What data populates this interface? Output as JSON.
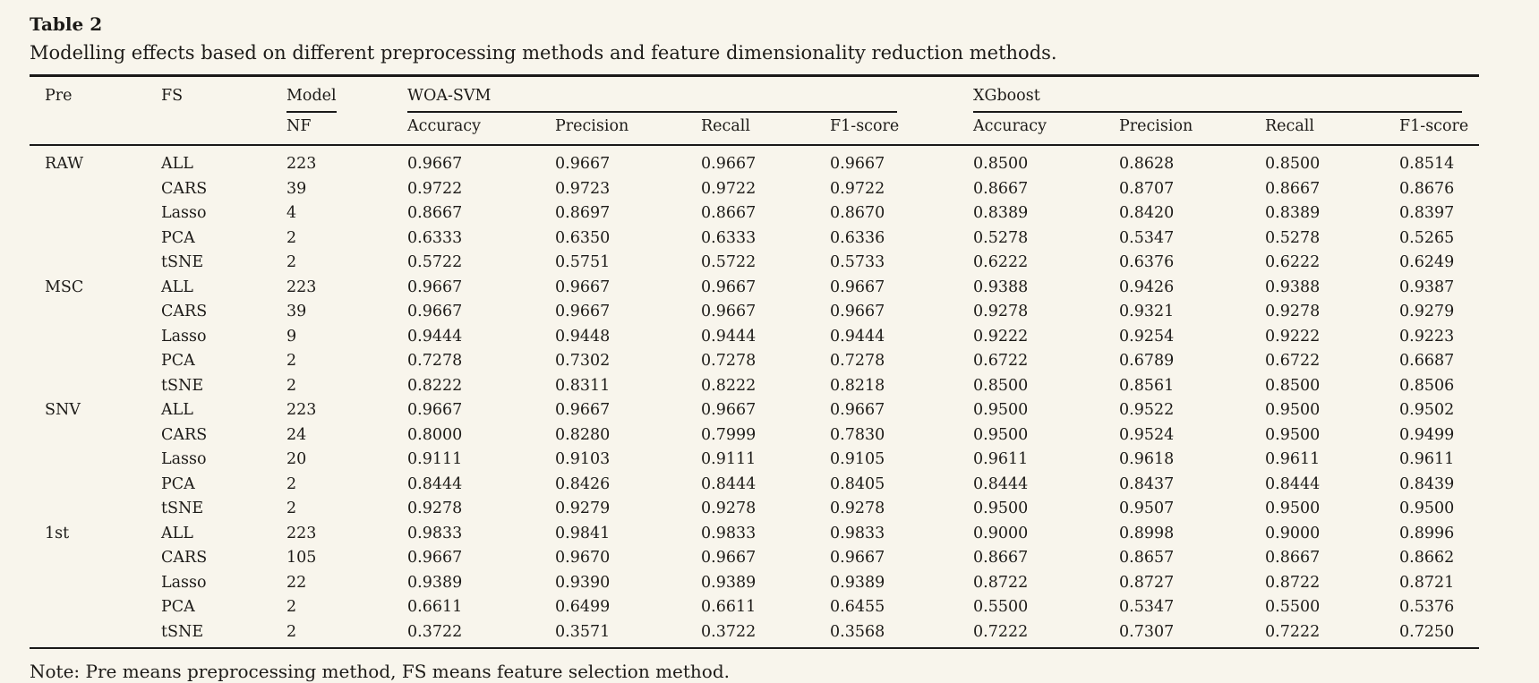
{
  "title": "Table 2",
  "caption": "Modelling effects based on different preprocessing methods and feature dimensionality reduction methods.",
  "note": "Note: Pre means preprocessing method, FS means feature selection method.",
  "colors": {
    "background": "#f8f5ec",
    "text": "#1d1b18",
    "rule": "#1a1918"
  },
  "header": {
    "pre": "Pre",
    "fs": "FS",
    "model": "Model",
    "nf": "NF",
    "groups": [
      {
        "label": "WOA-SVM",
        "metrics": [
          "Accuracy",
          "Precision",
          "Recall",
          "F1-score"
        ]
      },
      {
        "label": "XGboost",
        "metrics": [
          "Accuracy",
          "Precision",
          "Recall",
          "F1-score"
        ]
      }
    ]
  },
  "rows": [
    {
      "pre": "RAW",
      "fs": "ALL",
      "nf": "223",
      "woa": [
        "0.9667",
        "0.9667",
        "0.9667",
        "0.9667"
      ],
      "xgb": [
        "0.8500",
        "0.8628",
        "0.8500",
        "0.8514"
      ]
    },
    {
      "pre": "",
      "fs": "CARS",
      "nf": "39",
      "woa": [
        "0.9722",
        "0.9723",
        "0.9722",
        "0.9722"
      ],
      "xgb": [
        "0.8667",
        "0.8707",
        "0.8667",
        "0.8676"
      ]
    },
    {
      "pre": "",
      "fs": "Lasso",
      "nf": "4",
      "woa": [
        "0.8667",
        "0.8697",
        "0.8667",
        "0.8670"
      ],
      "xgb": [
        "0.8389",
        "0.8420",
        "0.8389",
        "0.8397"
      ]
    },
    {
      "pre": "",
      "fs": "PCA",
      "nf": "2",
      "woa": [
        "0.6333",
        "0.6350",
        "0.6333",
        "0.6336"
      ],
      "xgb": [
        "0.5278",
        "0.5347",
        "0.5278",
        "0.5265"
      ]
    },
    {
      "pre": "",
      "fs": "tSNE",
      "nf": "2",
      "woa": [
        "0.5722",
        "0.5751",
        "0.5722",
        "0.5733"
      ],
      "xgb": [
        "0.6222",
        "0.6376",
        "0.6222",
        "0.6249"
      ]
    },
    {
      "pre": "MSC",
      "fs": "ALL",
      "nf": "223",
      "woa": [
        "0.9667",
        "0.9667",
        "0.9667",
        "0.9667"
      ],
      "xgb": [
        "0.9388",
        "0.9426",
        "0.9388",
        "0.9387"
      ]
    },
    {
      "pre": "",
      "fs": "CARS",
      "nf": "39",
      "woa": [
        "0.9667",
        "0.9667",
        "0.9667",
        "0.9667"
      ],
      "xgb": [
        "0.9278",
        "0.9321",
        "0.9278",
        "0.9279"
      ]
    },
    {
      "pre": "",
      "fs": "Lasso",
      "nf": "9",
      "woa": [
        "0.9444",
        "0.9448",
        "0.9444",
        "0.9444"
      ],
      "xgb": [
        "0.9222",
        "0.9254",
        "0.9222",
        "0.9223"
      ]
    },
    {
      "pre": "",
      "fs": "PCA",
      "nf": "2",
      "woa": [
        "0.7278",
        "0.7302",
        "0.7278",
        "0.7278"
      ],
      "xgb": [
        "0.6722",
        "0.6789",
        "0.6722",
        "0.6687"
      ]
    },
    {
      "pre": "",
      "fs": "tSNE",
      "nf": "2",
      "woa": [
        "0.8222",
        "0.8311",
        "0.8222",
        "0.8218"
      ],
      "xgb": [
        "0.8500",
        "0.8561",
        "0.8500",
        "0.8506"
      ]
    },
    {
      "pre": "SNV",
      "fs": "ALL",
      "nf": "223",
      "woa": [
        "0.9667",
        "0.9667",
        "0.9667",
        "0.9667"
      ],
      "xgb": [
        "0.9500",
        "0.9522",
        "0.9500",
        "0.9502"
      ]
    },
    {
      "pre": "",
      "fs": "CARS",
      "nf": "24",
      "woa": [
        "0.8000",
        "0.8280",
        "0.7999",
        "0.7830"
      ],
      "xgb": [
        "0.9500",
        "0.9524",
        "0.9500",
        "0.9499"
      ]
    },
    {
      "pre": "",
      "fs": "Lasso",
      "nf": "20",
      "woa": [
        "0.9111",
        "0.9103",
        "0.9111",
        "0.9105"
      ],
      "xgb": [
        "0.9611",
        "0.9618",
        "0.9611",
        "0.9611"
      ]
    },
    {
      "pre": "",
      "fs": "PCA",
      "nf": "2",
      "woa": [
        "0.8444",
        "0.8426",
        "0.8444",
        "0.8405"
      ],
      "xgb": [
        "0.8444",
        "0.8437",
        "0.8444",
        "0.8439"
      ]
    },
    {
      "pre": "",
      "fs": "tSNE",
      "nf": "2",
      "woa": [
        "0.9278",
        "0.9279",
        "0.9278",
        "0.9278"
      ],
      "xgb": [
        "0.9500",
        "0.9507",
        "0.9500",
        "0.9500"
      ]
    },
    {
      "pre": "1st",
      "fs": "ALL",
      "nf": "223",
      "woa": [
        "0.9833",
        "0.9841",
        "0.9833",
        "0.9833"
      ],
      "xgb": [
        "0.9000",
        "0.8998",
        "0.9000",
        "0.8996"
      ]
    },
    {
      "pre": "",
      "fs": "CARS",
      "nf": "105",
      "woa": [
        "0.9667",
        "0.9670",
        "0.9667",
        "0.9667"
      ],
      "xgb": [
        "0.8667",
        "0.8657",
        "0.8667",
        "0.8662"
      ]
    },
    {
      "pre": "",
      "fs": "Lasso",
      "nf": "22",
      "woa": [
        "0.9389",
        "0.9390",
        "0.9389",
        "0.9389"
      ],
      "xgb": [
        "0.8722",
        "0.8727",
        "0.8722",
        "0.8721"
      ]
    },
    {
      "pre": "",
      "fs": "PCA",
      "nf": "2",
      "woa": [
        "0.6611",
        "0.6499",
        "0.6611",
        "0.6455"
      ],
      "xgb": [
        "0.5500",
        "0.5347",
        "0.5500",
        "0.5376"
      ]
    },
    {
      "pre": "",
      "fs": "tSNE",
      "nf": "2",
      "woa": [
        "0.3722",
        "0.3571",
        "0.3722",
        "0.3568"
      ],
      "xgb": [
        "0.7222",
        "0.7307",
        "0.7222",
        "0.7250"
      ]
    }
  ]
}
